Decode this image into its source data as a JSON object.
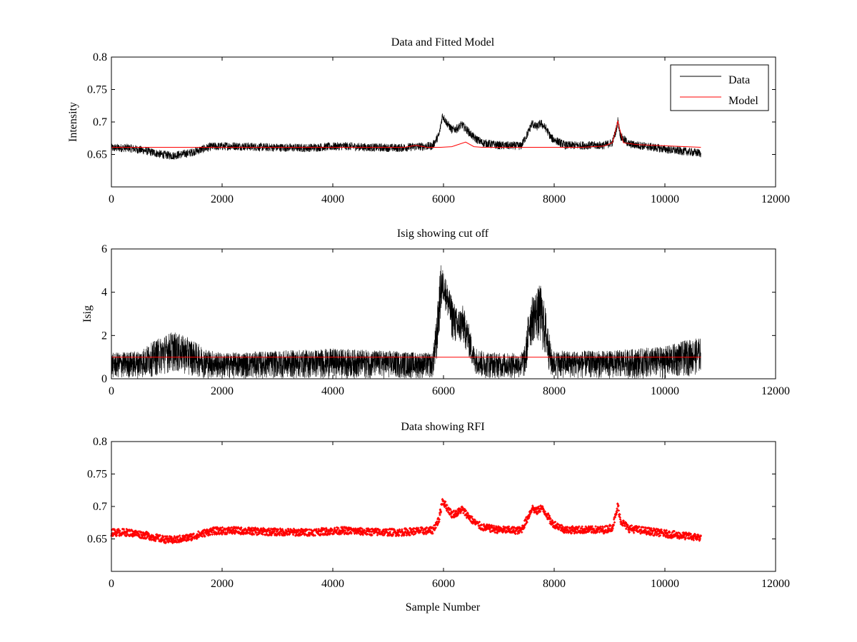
{
  "figure": {
    "background": "#ffffff"
  },
  "chart_data": [
    {
      "id": "panel1",
      "type": "line",
      "title": "Data and Fitted Model",
      "xlabel": "",
      "ylabel": "Intensity",
      "xlim": [
        0,
        12000
      ],
      "ylim": [
        0.6,
        0.8
      ],
      "xticks": [
        0,
        2000,
        4000,
        6000,
        8000,
        10000,
        12000
      ],
      "yticks": [
        0.65,
        0.7,
        0.75,
        0.8
      ],
      "xtick_labels": [
        "0",
        "2000",
        "4000",
        "6000",
        "8000",
        "10000",
        "12000"
      ],
      "ytick_labels": [
        "0.65",
        "0.7",
        "0.75",
        "0.8"
      ],
      "legend": {
        "position": "top-right",
        "entries": [
          "Data",
          "Model"
        ]
      },
      "series": [
        {
          "name": "Data",
          "color": "#000000",
          "style": "noisy-line",
          "noise": 0.0065,
          "x": [
            0,
            300,
            600,
            900,
            1100,
            1400,
            1800,
            2200,
            2800,
            3500,
            4200,
            4600,
            5200,
            5500,
            5800,
            5920,
            5980,
            6050,
            6150,
            6250,
            6330,
            6420,
            6550,
            6700,
            7000,
            7400,
            7520,
            7600,
            7680,
            7760,
            7850,
            7950,
            8200,
            8500,
            8900,
            9050,
            9120,
            9150,
            9200,
            9350,
            9700,
            10100,
            10650
          ],
          "y": [
            0.66,
            0.66,
            0.656,
            0.65,
            0.648,
            0.652,
            0.662,
            0.663,
            0.661,
            0.66,
            0.663,
            0.661,
            0.66,
            0.662,
            0.663,
            0.68,
            0.71,
            0.7,
            0.688,
            0.69,
            0.696,
            0.688,
            0.676,
            0.668,
            0.664,
            0.663,
            0.682,
            0.698,
            0.692,
            0.698,
            0.69,
            0.675,
            0.664,
            0.664,
            0.664,
            0.668,
            0.688,
            0.702,
            0.678,
            0.666,
            0.662,
            0.657,
            0.652
          ]
        },
        {
          "name": "Model",
          "color": "#ff0000",
          "style": "line",
          "x": [
            0,
            5300,
            5500,
            5700,
            5950,
            6150,
            6400,
            6550,
            6700,
            8500,
            8900,
            9050,
            9120,
            9150,
            9180,
            9250,
            9500,
            10650
          ],
          "y": [
            0.661,
            0.661,
            0.664,
            0.661,
            0.661,
            0.662,
            0.669,
            0.662,
            0.661,
            0.661,
            0.663,
            0.668,
            0.69,
            0.702,
            0.69,
            0.668,
            0.665,
            0.661
          ]
        }
      ]
    },
    {
      "id": "panel2",
      "type": "line",
      "title": "Isig showing cut off",
      "xlabel": "",
      "ylabel": "Isig",
      "xlim": [
        0,
        12000
      ],
      "ylim": [
        0,
        6
      ],
      "xticks": [
        0,
        2000,
        4000,
        6000,
        8000,
        10000,
        12000
      ],
      "yticks": [
        0,
        2,
        4,
        6
      ],
      "xtick_labels": [
        "0",
        "2000",
        "4000",
        "6000",
        "8000",
        "10000",
        "12000"
      ],
      "ytick_labels": [
        "0",
        "2",
        "4",
        "6"
      ],
      "series": [
        {
          "name": "Isig",
          "color": "#000000",
          "style": "noise-band",
          "x": [
            0,
            500,
            800,
            1100,
            1400,
            1700,
            2000,
            3000,
            4000,
            5000,
            5800,
            5870,
            5950,
            6000,
            6050,
            6150,
            6250,
            6350,
            6450,
            6550,
            6700,
            7000,
            7400,
            7480,
            7550,
            7650,
            7750,
            7850,
            7950,
            8000,
            9000,
            9500,
            10000,
            10400,
            10650
          ],
          "lower": [
            0,
            0,
            0.1,
            0.3,
            0.15,
            0,
            0,
            0,
            0,
            0,
            0,
            0.4,
            2.8,
            3.5,
            3.0,
            1.8,
            1.4,
            1.6,
            1.0,
            0.3,
            0,
            0,
            0,
            0,
            1.2,
            1.8,
            1.5,
            0.8,
            0,
            0,
            0,
            0,
            0,
            0.1,
            0.2
          ],
          "upper": [
            1.2,
            1.3,
            1.8,
            2.2,
            1.9,
            1.4,
            1.2,
            1.3,
            1.4,
            1.3,
            1.2,
            2.8,
            5.3,
            5.0,
            4.6,
            3.8,
            3.2,
            3.4,
            2.6,
            1.5,
            1.3,
            1.2,
            1.2,
            1.6,
            3.6,
            4.0,
            4.4,
            3.2,
            1.4,
            1.3,
            1.3,
            1.4,
            1.5,
            1.8,
            1.9
          ]
        },
        {
          "name": "Cut off",
          "color": "#ff0000",
          "style": "line",
          "x": [
            0,
            10650
          ],
          "y": [
            1.0,
            1.0
          ]
        }
      ]
    },
    {
      "id": "panel3",
      "type": "scatter",
      "title": "Data showing RFI",
      "xlabel": "Sample Number",
      "ylabel": "",
      "xlim": [
        0,
        12000
      ],
      "ylim": [
        0.6,
        0.8
      ],
      "xticks": [
        0,
        2000,
        4000,
        6000,
        8000,
        10000,
        12000
      ],
      "yticks": [
        0.65,
        0.7,
        0.75,
        0.8
      ],
      "xtick_labels": [
        "0",
        "2000",
        "4000",
        "6000",
        "8000",
        "10000",
        "12000"
      ],
      "ytick_labels": [
        "0.65",
        "0.7",
        "0.75",
        "0.8"
      ],
      "series": [
        {
          "name": "Data",
          "color": "#ff0000",
          "style": "noisy-markers",
          "noise": 0.0055,
          "x": [
            0,
            300,
            600,
            900,
            1100,
            1400,
            1800,
            2200,
            2800,
            3500,
            4200,
            4600,
            5200,
            5500,
            5800,
            5920,
            5980,
            6050,
            6150,
            6250,
            6330,
            6420,
            6550,
            6700,
            7000,
            7400,
            7520,
            7600,
            7680,
            7760,
            7850,
            7950,
            8200,
            8500,
            8900,
            9050,
            9120,
            9150,
            9200,
            9350,
            9700,
            10100,
            10650
          ],
          "y": [
            0.66,
            0.66,
            0.656,
            0.65,
            0.648,
            0.652,
            0.662,
            0.663,
            0.661,
            0.66,
            0.663,
            0.661,
            0.66,
            0.662,
            0.663,
            0.68,
            0.71,
            0.7,
            0.688,
            0.69,
            0.696,
            0.688,
            0.676,
            0.668,
            0.664,
            0.663,
            0.682,
            0.698,
            0.692,
            0.698,
            0.69,
            0.675,
            0.664,
            0.664,
            0.664,
            0.668,
            0.688,
            0.702,
            0.678,
            0.666,
            0.662,
            0.657,
            0.652
          ]
        }
      ]
    }
  ]
}
